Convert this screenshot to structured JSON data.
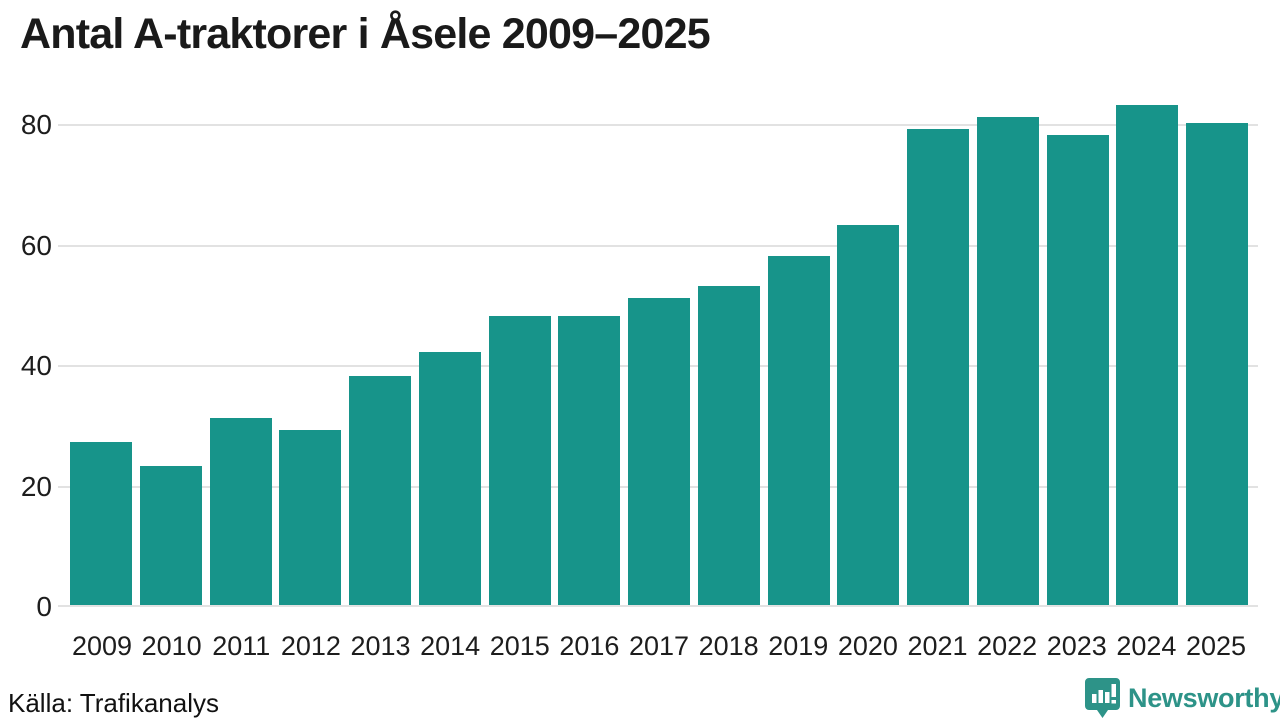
{
  "chart_data": {
    "type": "bar",
    "title": "Antal A-traktorer i Åsele 2009–2025",
    "categories": [
      "2009",
      "2010",
      "2011",
      "2012",
      "2013",
      "2014",
      "2015",
      "2016",
      "2017",
      "2018",
      "2019",
      "2020",
      "2021",
      "2022",
      "2023",
      "2024",
      "2025"
    ],
    "values": [
      27,
      23,
      31,
      29,
      38,
      42,
      48,
      48,
      51,
      53,
      58,
      63,
      79,
      81,
      78,
      83,
      80
    ],
    "xlabel": "",
    "ylabel": "",
    "y_ticks": [
      0,
      20,
      40,
      60,
      80
    ],
    "ylim": [
      0,
      86
    ],
    "grid": true,
    "legend_position": "none",
    "bar_color": "#17948a",
    "gridline_color": "#e2e2e2"
  },
  "source": {
    "label": "Källa: Trafikanalys"
  },
  "branding": {
    "wordmark": "Newsworthy",
    "logo_icon": "newsworthy-pin-barchart-icon",
    "brand_color": "#2d9388"
  }
}
